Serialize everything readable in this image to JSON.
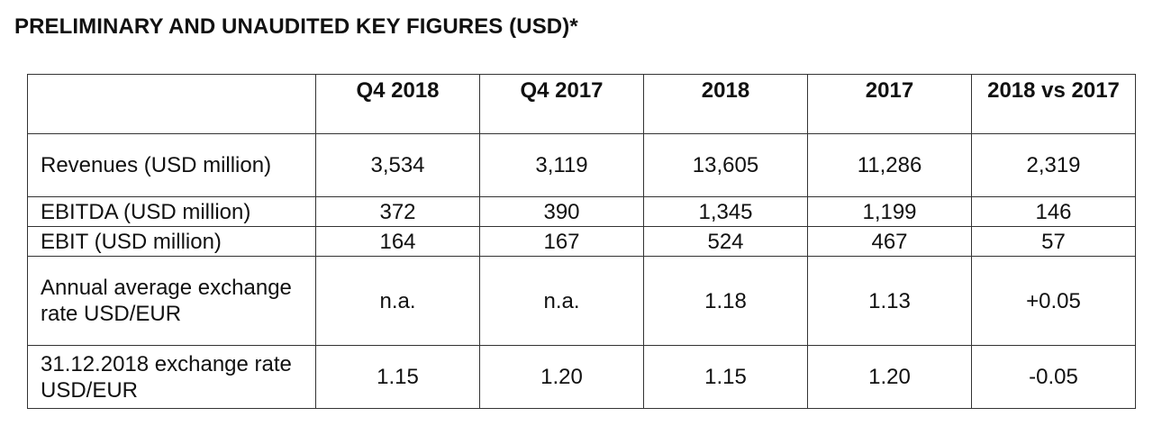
{
  "title": "PRELIMINARY AND UNAUDITED KEY FIGURES (USD)*",
  "table": {
    "corner": "",
    "headers": [
      "Q4 2018",
      "Q4 2017",
      "2018",
      "2017",
      "2018 vs 2017"
    ],
    "rows": [
      {
        "label": "Revenues (USD million)",
        "values": [
          "3,534",
          "3,119",
          "13,605",
          "11,286",
          "2,319"
        ]
      },
      {
        "label": "EBITDA (USD million)",
        "values": [
          "372",
          "390",
          "1,345",
          "1,199",
          "146"
        ]
      },
      {
        "label": "EBIT (USD million)",
        "values": [
          "164",
          "167",
          "524",
          "467",
          "57"
        ]
      },
      {
        "label": "Annual average exchange rate USD/EUR",
        "values": [
          "n.a.",
          "n.a.",
          "1.18",
          "1.13",
          "+0.05"
        ]
      },
      {
        "label": "31.12.2018 exchange rate USD/EUR",
        "values": [
          "1.15",
          "1.20",
          "1.15",
          "1.20",
          "-0.05"
        ]
      }
    ]
  }
}
